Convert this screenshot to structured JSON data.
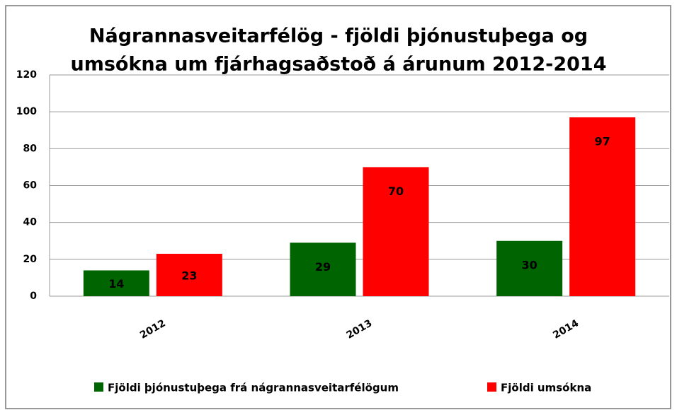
{
  "chart_data": {
    "type": "bar",
    "title": [
      "Nágrannasveitarfélög - fjöldi þjónustuþega og",
      "umsókna um fjárhagsaðstoð á árunum 2012-2014"
    ],
    "categories": [
      "2012",
      "2013",
      "2014"
    ],
    "series": [
      {
        "name": "Fjöldi þjónustuþega frá nágrannasveitarfélögum",
        "color": "#006400",
        "values": [
          14,
          29,
          30
        ]
      },
      {
        "name": "Fjöldi umsókna",
        "color": "#ff0000",
        "values": [
          23,
          70,
          97
        ]
      }
    ],
    "ylim": [
      0,
      120
    ],
    "yticks": [
      0,
      20,
      40,
      60,
      80,
      100,
      120
    ],
    "grid": true,
    "legend": "bottom"
  }
}
